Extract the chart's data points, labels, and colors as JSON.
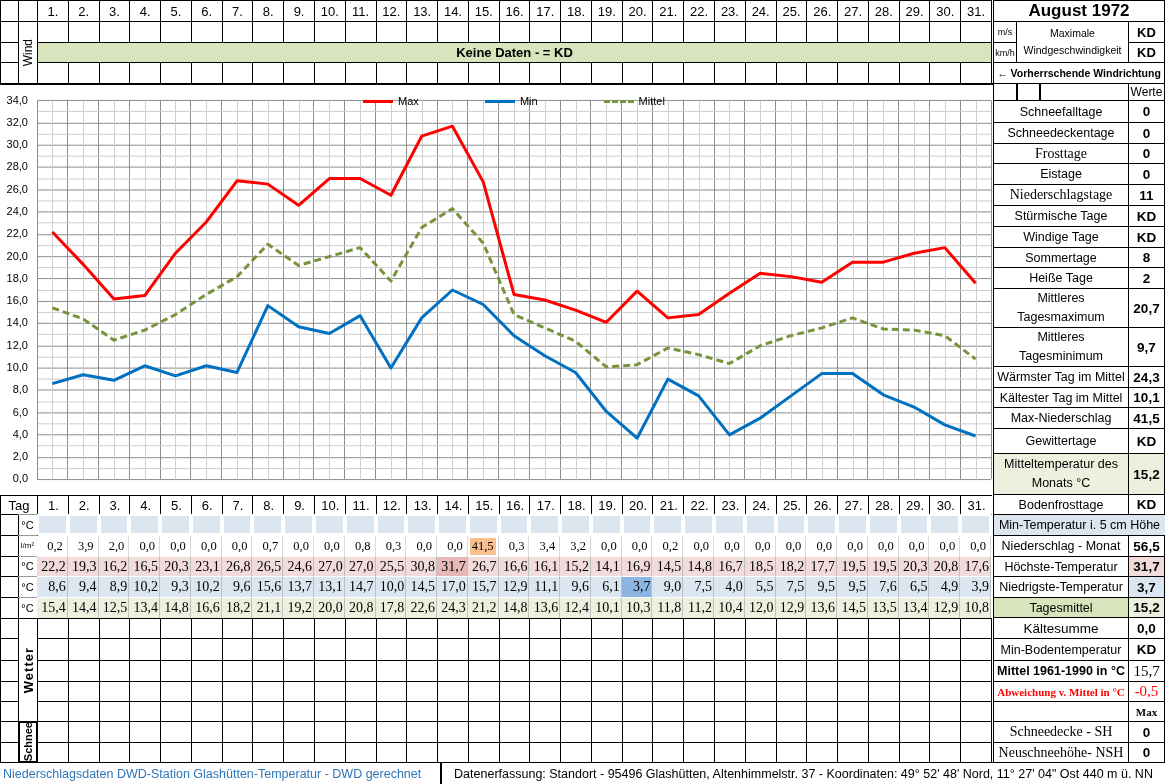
{
  "chart_data": [
    {
      "type": "line",
      "xlabel": "Tag",
      "categories": [
        "1.",
        "2.",
        "3.",
        "4.",
        "5.",
        "6.",
        "7.",
        "8.",
        "9.",
        "10.",
        "11.",
        "12.",
        "13.",
        "14.",
        "15.",
        "16.",
        "17.",
        "18.",
        "19.",
        "20.",
        "21.",
        "22.",
        "23.",
        "24.",
        "25.",
        "26.",
        "27.",
        "28.",
        "29.",
        "30.",
        "31."
      ],
      "series": [
        {
          "name": "Max",
          "color": "#ff0000",
          "values": [
            22.2,
            19.3,
            16.2,
            16.5,
            20.3,
            23.1,
            26.8,
            26.5,
            24.6,
            27.0,
            27.0,
            25.5,
            30.8,
            31.7,
            26.7,
            16.6,
            16.1,
            15.2,
            14.1,
            16.9,
            14.5,
            14.8,
            16.7,
            18.5,
            18.2,
            17.7,
            19.5,
            19.5,
            20.3,
            20.8,
            17.6
          ],
          "value_labels": [
            "22,2",
            "19,3",
            "16,2",
            "16,5",
            "20,3",
            "23,1",
            "26,8",
            "26,5",
            "24,6",
            "27,0",
            "27,0",
            "25,5",
            "30,8",
            "31,7",
            "26,7",
            "16,6",
            "16,1",
            "15,2",
            "14,1",
            "16,9",
            "14,5",
            "14,8",
            "16,7",
            "18,5",
            "18,2",
            "17,7",
            "19,5",
            "19,5",
            "20,3",
            "20,8",
            "17,6"
          ]
        },
        {
          "name": "Min",
          "color": "#0070c0",
          "values": [
            8.6,
            9.4,
            8.9,
            10.2,
            9.3,
            10.2,
            9.6,
            15.6,
            13.7,
            13.1,
            14.7,
            10.0,
            14.5,
            17.0,
            15.7,
            12.9,
            11.1,
            9.6,
            6.1,
            3.7,
            9.0,
            7.5,
            4.0,
            5.5,
            7.5,
            9.5,
            9.5,
            7.6,
            6.5,
            4.9,
            3.9
          ],
          "value_labels": [
            "8,6",
            "9,4",
            "8,9",
            "10,2",
            "9,3",
            "10,2",
            "9,6",
            "15,6",
            "13,7",
            "13,1",
            "14,7",
            "10,0",
            "14,5",
            "17,0",
            "15,7",
            "12,9",
            "11,1",
            "9,6",
            "6,1",
            "3,7",
            "9,0",
            "7,5",
            "4,0",
            "5,5",
            "7,5",
            "9,5",
            "9,5",
            "7,6",
            "6,5",
            "4,9",
            "3,9"
          ]
        },
        {
          "name": "Mittel",
          "color": "#77933c",
          "line_style": "dashed",
          "values": [
            15.4,
            14.4,
            12.5,
            13.4,
            14.8,
            16.6,
            18.2,
            21.1,
            19.2,
            20.0,
            20.8,
            17.8,
            22.6,
            24.3,
            21.2,
            14.8,
            13.6,
            12.4,
            10.1,
            10.3,
            11.8,
            11.2,
            10.4,
            12.0,
            12.9,
            13.6,
            14.5,
            13.5,
            13.4,
            12.9,
            10.8
          ],
          "value_labels": [
            "15,4",
            "14,4",
            "12,5",
            "13,4",
            "14,8",
            "16,6",
            "18,2",
            "21,1",
            "19,2",
            "20,0",
            "20,8",
            "17,8",
            "22,6",
            "24,3",
            "21,2",
            "14,8",
            "13,6",
            "12,4",
            "10,1",
            "10,3",
            "11,8",
            "11,2",
            "10,4",
            "12,0",
            "12,9",
            "13,6",
            "14,5",
            "13,5",
            "13,4",
            "12,9",
            "10,8"
          ]
        }
      ],
      "ylim": [
        0,
        34
      ],
      "yticks": [
        {
          "value": 0,
          "label": "0,0"
        },
        {
          "value": 1,
          "label": null
        },
        {
          "value": 2,
          "label": "2,0"
        },
        {
          "value": 3,
          "label": null
        },
        {
          "value": 4,
          "label": "4,0"
        },
        {
          "value": 5,
          "label": null
        },
        {
          "value": 6,
          "label": "6,0"
        },
        {
          "value": 7,
          "label": null
        },
        {
          "value": 8,
          "label": "8,0"
        },
        {
          "value": 9,
          "label": null
        },
        {
          "value": 10,
          "label": "10,0"
        },
        {
          "value": 11,
          "label": null
        },
        {
          "value": 12,
          "label": "12,0"
        },
        {
          "value": 13,
          "label": null
        },
        {
          "value": 14,
          "label": "14,0"
        },
        {
          "value": 15,
          "label": null
        },
        {
          "value": 16,
          "label": "16,0"
        },
        {
          "value": 17,
          "label": null
        },
        {
          "value": 18,
          "label": "18,0"
        },
        {
          "value": 19,
          "label": null
        },
        {
          "value": 20,
          "label": "20,0"
        },
        {
          "value": 21,
          "label": null
        },
        {
          "value": 22,
          "label": "22,0"
        },
        {
          "value": 23,
          "label": null
        },
        {
          "value": 24,
          "label": "24,0"
        },
        {
          "value": 25,
          "label": null
        },
        {
          "value": 26,
          "label": "26,0"
        },
        {
          "value": 27,
          "label": null
        },
        {
          "value": 28,
          "label": "28,0"
        },
        {
          "value": 29,
          "label": null
        },
        {
          "value": 30,
          "label": "30,0"
        },
        {
          "value": 31,
          "label": null
        },
        {
          "value": 32,
          "label": "32,0"
        },
        {
          "value": 33,
          "label": null
        },
        {
          "value": 34,
          "label": "34,0"
        }
      ],
      "grid": true,
      "legend": "top",
      "marker": "none",
      "annotations": [
        "Wind",
        "Keine Daten - = KD",
        "°C",
        "°C",
        "°C",
        "°C",
        "Wetter",
        "Schnee"
      ]
    },
    {
      "type": "other",
      "ylabel": "l/m²",
      "value_labels": [
        "0,2",
        "3,9",
        "2,0",
        "0,0",
        "0,0",
        "0,0",
        "0,0",
        "0,7",
        "0,0",
        "0,0",
        "0,8",
        "0,3",
        "0,0",
        "0,0",
        "41,5",
        "0,3",
        "3,4",
        "3,2",
        "0,0",
        "0,0",
        "0,2",
        "0,0",
        "0,0",
        "0,0",
        "0,0",
        "0,0",
        "0,0",
        "0,0",
        "0,0",
        "0,0",
        "0,0"
      ]
    },
    {
      "type": "other",
      "title": "August 1972",
      "annotations": [
        "m/s",
        "km/h",
        "Maximale Windgeschwindigkeit",
        "KD",
        "KD",
        "← Vorherrschende Windrichtung",
        "Werte"
      ],
      "categories": [
        "Schneefalltage",
        "Schneedeckentage",
        "Frosttage",
        "Eistage",
        "Niederschlagstage",
        "Stürmische Tage",
        "Windige Tage",
        "Sommertage",
        "Heiße Tage",
        "Mittleres Tagesmaximum",
        "Mittleres Tagesminimum",
        "Wärmster Tag im Mittel",
        "Kältester Tag im Mittel",
        "Max-Niederschlag",
        "Gewittertage",
        "Mitteltemperatur des Monats °C",
        "Bodenfrosttage",
        "Min-Temperatur i. 5 cm Höhe",
        "Niederschlag - Monat",
        "Höchste-Temperatur",
        "Niedrigste-Temperatur",
        "Tagesmittel",
        "Kältesumme",
        "Min-Bodentemperatur",
        "Mittel 1961-1990 in °C",
        "Abweichung v. Mittel in °C",
        null,
        "Schneedecke - SH",
        "Neuschneehöhe- NSH"
      ],
      "value_labels": [
        "0",
        "0",
        "0",
        "0",
        "11",
        "KD",
        "KD",
        "8",
        "2",
        "20,7",
        "9,7",
        "24,3",
        "10,1",
        "41,5",
        "KD",
        "15,2",
        "KD",
        null,
        "56,5",
        "31,7",
        "3,7",
        "15,2",
        "0,0",
        "KD",
        "15,7",
        "-0,5",
        "Max",
        "0",
        "0"
      ]
    },
    {
      "type": "other",
      "annotations": [
        "Niederschlagsdaten DWD-Station Glashütten-Temperatur - DWD gerechnet",
        "Datenerfassung: Standort - 95496 Glashütten, Altenhimmelstr. 37 - Koordinaten: 49° 52' 48' Nord, 11° 27' 04\" Ost 440 m ü. NN"
      ]
    }
  ]
}
